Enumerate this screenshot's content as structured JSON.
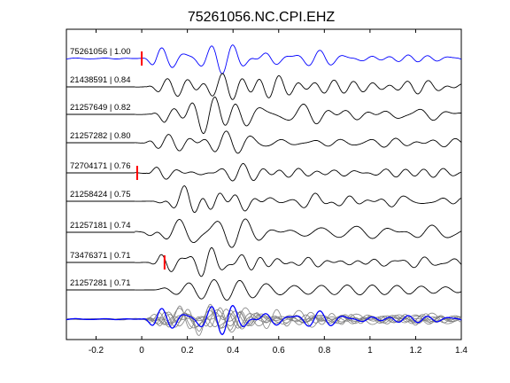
{
  "chart_data": {
    "type": "line",
    "title": "75261056.NC.CPI.EHZ",
    "xlabel": "",
    "ylabel": "",
    "xlim": [
      -0.33,
      1.4
    ],
    "x_ticks": [
      "-0.2",
      "0",
      "0.2",
      "0.4",
      "0.6",
      "0.8",
      "1",
      "1.2",
      "1.4"
    ],
    "x_tick_values": [
      -0.2,
      0,
      0.2,
      0.4,
      0.6,
      0.8,
      1.0,
      1.2,
      1.4
    ],
    "grid": false,
    "series": [
      {
        "label": "75261056 | 1.00",
        "color": "#0000ff",
        "pick": 0.0
      },
      {
        "label": "21438591 | 0.84",
        "color": "#000000",
        "pick": null
      },
      {
        "label": "21257649 | 0.82",
        "color": "#000000",
        "pick": null
      },
      {
        "label": "21257282 | 0.80",
        "color": "#000000",
        "pick": null
      },
      {
        "label": "72704171 | 0.76",
        "color": "#000000",
        "pick": -0.02
      },
      {
        "label": "21258424 | 0.75",
        "color": "#000000",
        "pick": null
      },
      {
        "label": "21257181 | 0.74",
        "color": "#000000",
        "pick": null
      },
      {
        "label": "73476371 | 0.71",
        "color": "#000000",
        "pick": 0.1
      },
      {
        "label": "21257281 | 0.71",
        "color": "#000000",
        "pick": null
      }
    ],
    "stack": {
      "colors": [
        "#0000ff",
        "#808080"
      ]
    },
    "pick_color": "#ff0000"
  }
}
